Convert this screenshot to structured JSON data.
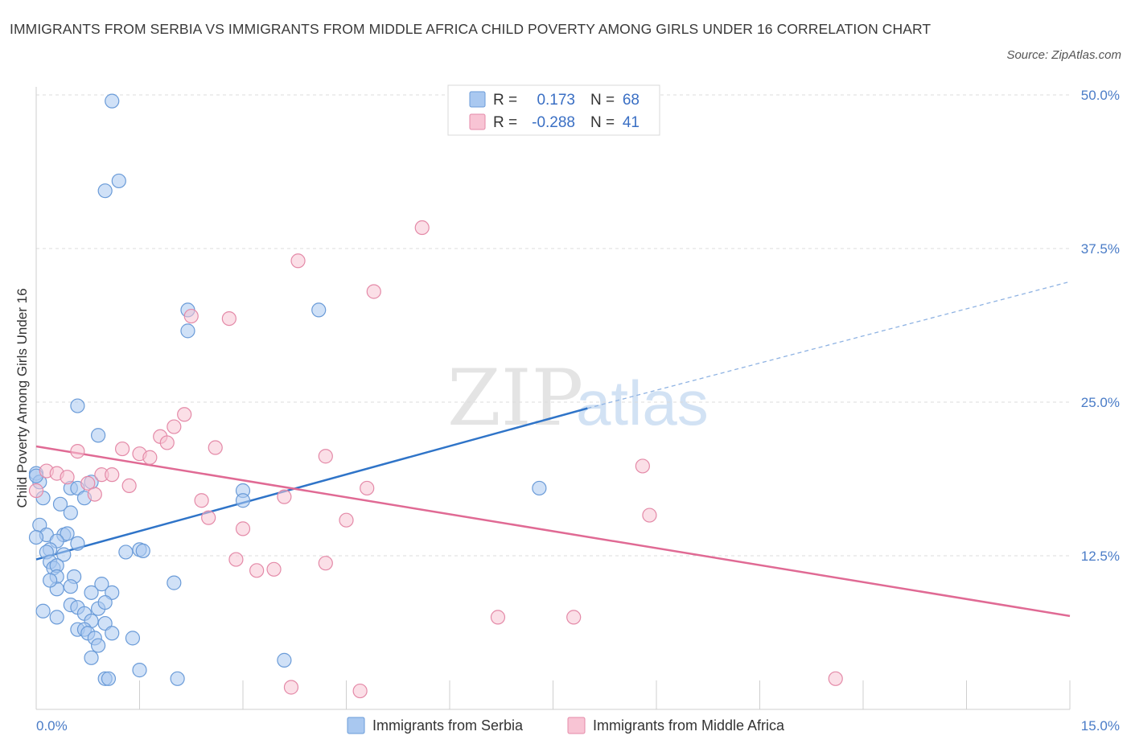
{
  "title": "IMMIGRANTS FROM SERBIA VS IMMIGRANTS FROM MIDDLE AFRICA CHILD POVERTY AMONG GIRLS UNDER 16 CORRELATION CHART",
  "source": "Source: ZipAtlas.com",
  "watermark": {
    "zip": "ZIP",
    "atlas": "atlas"
  },
  "legend": {
    "r_label": "R =",
    "n_label": "N =",
    "rows": [
      {
        "r": "0.173",
        "n": "68",
        "color": "#a9c8f0",
        "stroke": "#6a9bd8"
      },
      {
        "r": "-0.288",
        "n": "41",
        "color": "#f8c4d4",
        "stroke": "#e48aa8"
      }
    ]
  },
  "chart_data": {
    "type": "scatter",
    "title": "IMMIGRANTS FROM SERBIA VS IMMIGRANTS FROM MIDDLE AFRICA CHILD POVERTY AMONG GIRLS UNDER 16 CORRELATION CHART",
    "xlabel": "",
    "ylabel": "Child Poverty Among Girls Under 16",
    "xlim": [
      0,
      15
    ],
    "ylim": [
      0,
      50
    ],
    "x_tick_labels": [
      "0.0%",
      "15.0%"
    ],
    "y_tick_labels": [
      "12.5%",
      "25.0%",
      "37.5%",
      "50.0%"
    ],
    "y_ticks": [
      12.5,
      25.0,
      37.5,
      50.0
    ],
    "grid": "horizontal dashed",
    "legend_position": "top-center",
    "series": [
      {
        "name": "Immigrants from Serbia",
        "color": "#a9c8f0",
        "stroke": "#6a9bd8",
        "trend": {
          "x": [
            0,
            8.0
          ],
          "y": [
            12.2,
            24.5
          ],
          "dashed_to": [
            15,
            34.8
          ],
          "color": "#2f74c8"
        },
        "points": [
          [
            1.1,
            49.5
          ],
          [
            1.2,
            43.0
          ],
          [
            1.0,
            42.2
          ],
          [
            2.2,
            32.5
          ],
          [
            2.2,
            30.8
          ],
          [
            4.1,
            32.5
          ],
          [
            0.6,
            24.7
          ],
          [
            0.9,
            22.3
          ],
          [
            0.0,
            19.2
          ],
          [
            0.05,
            18.5
          ],
          [
            0.8,
            18.5
          ],
          [
            0.5,
            18.0
          ],
          [
            0.6,
            18.0
          ],
          [
            3.0,
            17.8
          ],
          [
            7.3,
            18.0
          ],
          [
            0.1,
            17.2
          ],
          [
            0.7,
            17.2
          ],
          [
            3.0,
            17.0
          ],
          [
            0.35,
            16.7
          ],
          [
            0.5,
            16.0
          ],
          [
            0.05,
            15.0
          ],
          [
            0.15,
            14.2
          ],
          [
            0.4,
            14.2
          ],
          [
            0.45,
            14.3
          ],
          [
            0.3,
            13.7
          ],
          [
            0.6,
            13.5
          ],
          [
            0.2,
            13.0
          ],
          [
            0.15,
            12.8
          ],
          [
            0.4,
            12.6
          ],
          [
            1.3,
            12.8
          ],
          [
            1.5,
            13.0
          ],
          [
            1.55,
            12.9
          ],
          [
            0.2,
            12.0
          ],
          [
            0.25,
            11.5
          ],
          [
            0.3,
            11.7
          ],
          [
            0.3,
            10.8
          ],
          [
            0.55,
            10.8
          ],
          [
            0.95,
            10.2
          ],
          [
            2.0,
            10.3
          ],
          [
            0.3,
            9.8
          ],
          [
            0.5,
            10.0
          ],
          [
            0.8,
            9.5
          ],
          [
            1.1,
            9.5
          ],
          [
            0.5,
            8.5
          ],
          [
            0.6,
            8.3
          ],
          [
            0.9,
            8.2
          ],
          [
            0.1,
            8.0
          ],
          [
            0.7,
            7.8
          ],
          [
            1.0,
            8.7
          ],
          [
            0.3,
            7.5
          ],
          [
            0.8,
            7.2
          ],
          [
            1.0,
            7.0
          ],
          [
            0.6,
            6.5
          ],
          [
            0.7,
            6.5
          ],
          [
            0.75,
            6.2
          ],
          [
            1.1,
            6.2
          ],
          [
            0.85,
            5.8
          ],
          [
            0.9,
            5.2
          ],
          [
            1.4,
            5.8
          ],
          [
            0.8,
            4.2
          ],
          [
            3.6,
            4.0
          ],
          [
            1.5,
            3.2
          ],
          [
            1.0,
            2.5
          ],
          [
            1.05,
            2.5
          ],
          [
            2.05,
            2.5
          ],
          [
            0.0,
            14.0
          ],
          [
            0.0,
            19.0
          ],
          [
            0.2,
            10.5
          ]
        ]
      },
      {
        "name": "Immigrants from Middle Africa",
        "color": "#f8c4d4",
        "stroke": "#e48aa8",
        "trend": {
          "x": [
            0,
            15
          ],
          "y": [
            21.4,
            7.6
          ],
          "color": "#e06a94"
        },
        "points": [
          [
            5.6,
            39.2
          ],
          [
            3.8,
            36.5
          ],
          [
            4.9,
            34.0
          ],
          [
            2.25,
            32.0
          ],
          [
            2.8,
            31.8
          ],
          [
            2.15,
            24.0
          ],
          [
            2.0,
            23.0
          ],
          [
            1.8,
            22.2
          ],
          [
            1.9,
            21.7
          ],
          [
            1.25,
            21.2
          ],
          [
            0.6,
            21.0
          ],
          [
            1.5,
            20.8
          ],
          [
            1.65,
            20.5
          ],
          [
            2.6,
            21.3
          ],
          [
            4.2,
            20.6
          ],
          [
            8.8,
            19.8
          ],
          [
            0.15,
            19.4
          ],
          [
            0.3,
            19.2
          ],
          [
            0.45,
            18.9
          ],
          [
            0.95,
            19.1
          ],
          [
            1.1,
            19.1
          ],
          [
            0.75,
            18.4
          ],
          [
            1.35,
            18.2
          ],
          [
            4.8,
            18.0
          ],
          [
            0.85,
            17.5
          ],
          [
            3.6,
            17.3
          ],
          [
            2.4,
            17.0
          ],
          [
            0.0,
            17.8
          ],
          [
            8.9,
            15.8
          ],
          [
            2.5,
            15.6
          ],
          [
            4.5,
            15.4
          ],
          [
            3.0,
            14.7
          ],
          [
            2.9,
            12.2
          ],
          [
            4.2,
            11.9
          ],
          [
            3.2,
            11.3
          ],
          [
            3.45,
            11.4
          ],
          [
            6.7,
            7.5
          ],
          [
            7.8,
            7.5
          ],
          [
            3.7,
            1.8
          ],
          [
            4.7,
            1.5
          ],
          [
            11.6,
            2.5
          ]
        ]
      }
    ]
  }
}
